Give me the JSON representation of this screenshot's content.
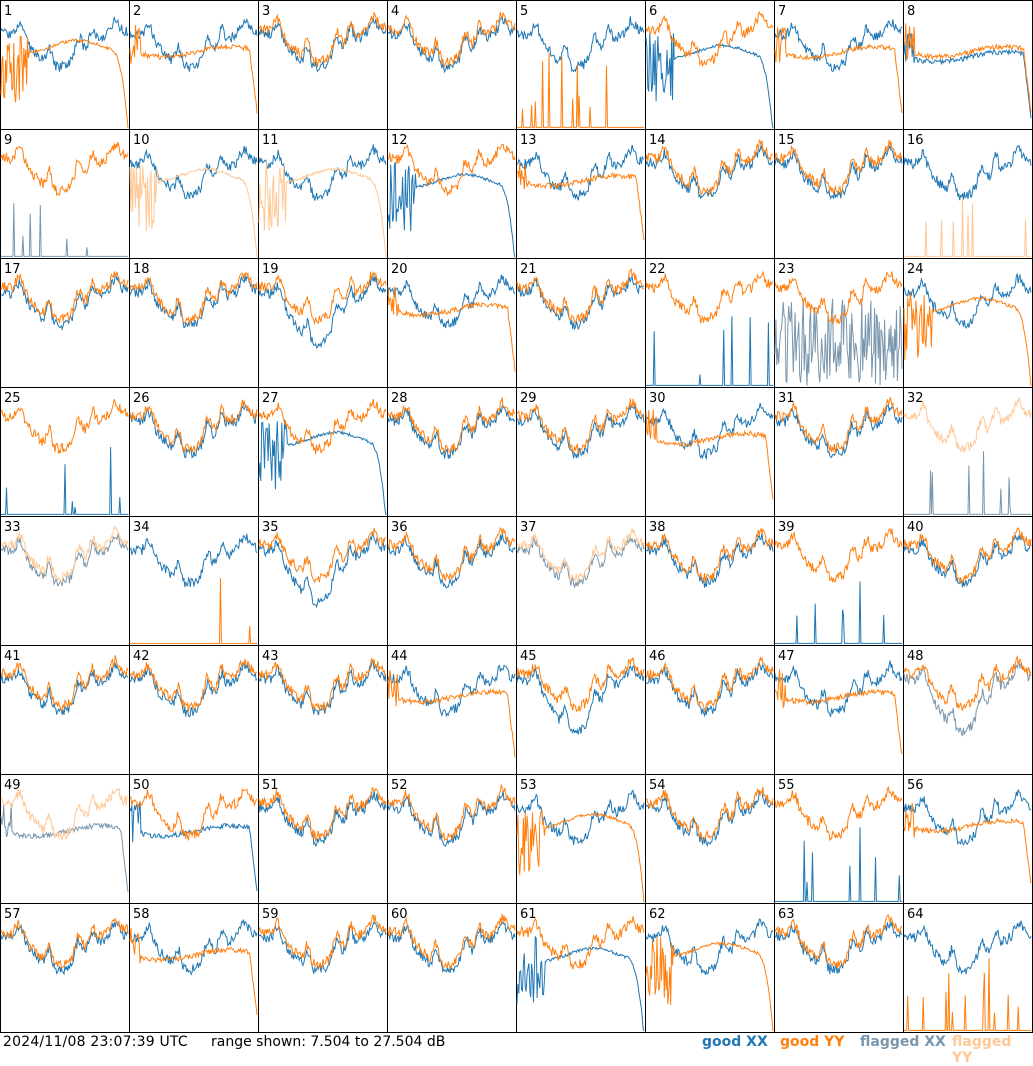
{
  "colors": {
    "good_xx": "#1f77b4",
    "good_yy": "#ff7f0e",
    "flagged_xx": "#7a96ad",
    "flagged_yy": "#ffc896",
    "frame": "#000000"
  },
  "footer": {
    "timestamp": "2024/11/08 23:07:39 UTC",
    "range_text": "range shown: 7.504 to 27.504 dB",
    "legend": {
      "good_label": "good",
      "flagged_label": "flagged",
      "xx_label": "XX",
      "yy_label": "YY"
    }
  },
  "chart_data": {
    "type": "line",
    "layout": "8x8 grid of small multiples",
    "ylim": [
      7.504,
      27.504
    ],
    "yunit": "dB",
    "grid": false,
    "legend_placement": "bottom-right",
    "series_names": [
      "good XX",
      "good YY",
      "flagged XX",
      "flagged YY"
    ],
    "panels": [
      {
        "id": "1",
        "xx": "good",
        "yy": "good",
        "xx_shape": "normal",
        "yy_shape": "droop"
      },
      {
        "id": "2",
        "xx": "good",
        "yy": "good",
        "xx_shape": "normal",
        "yy_shape": "flat"
      },
      {
        "id": "3",
        "xx": "good",
        "yy": "good",
        "xx_shape": "normal",
        "yy_shape": "normal"
      },
      {
        "id": "4",
        "xx": "good",
        "yy": "good",
        "xx_shape": "normal",
        "yy_shape": "normal"
      },
      {
        "id": "5",
        "xx": "good",
        "yy": "good",
        "xx_shape": "normal",
        "yy_shape": "dead"
      },
      {
        "id": "6",
        "xx": "good",
        "yy": "good",
        "xx_shape": "droop",
        "yy_shape": "normal"
      },
      {
        "id": "7",
        "xx": "good",
        "yy": "good",
        "xx_shape": "normal",
        "yy_shape": "flat"
      },
      {
        "id": "8",
        "xx": "good",
        "yy": "good",
        "xx_shape": "flat",
        "yy_shape": "flat"
      },
      {
        "id": "9",
        "xx": "flagged",
        "yy": "good",
        "xx_shape": "dead",
        "yy_shape": "normal"
      },
      {
        "id": "10",
        "xx": "good",
        "yy": "flagged",
        "xx_shape": "normal",
        "yy_shape": "droop"
      },
      {
        "id": "11",
        "xx": "good",
        "yy": "flagged",
        "xx_shape": "normal",
        "yy_shape": "droop"
      },
      {
        "id": "12",
        "xx": "good",
        "yy": "good",
        "xx_shape": "droop",
        "yy_shape": "normal"
      },
      {
        "id": "13",
        "xx": "good",
        "yy": "good",
        "xx_shape": "normal",
        "yy_shape": "flat"
      },
      {
        "id": "14",
        "xx": "good",
        "yy": "good",
        "xx_shape": "normal",
        "yy_shape": "normal"
      },
      {
        "id": "15",
        "xx": "good",
        "yy": "good",
        "xx_shape": "normal",
        "yy_shape": "normal"
      },
      {
        "id": "16",
        "xx": "good",
        "yy": "flagged",
        "xx_shape": "normal",
        "yy_shape": "dead"
      },
      {
        "id": "17",
        "xx": "good",
        "yy": "good",
        "xx_shape": "normal",
        "yy_shape": "normal"
      },
      {
        "id": "18",
        "xx": "good",
        "yy": "good",
        "xx_shape": "normal",
        "yy_shape": "normal"
      },
      {
        "id": "19",
        "xx": "good",
        "yy": "good",
        "xx_shape": "deep",
        "yy_shape": "normal"
      },
      {
        "id": "20",
        "xx": "good",
        "yy": "good",
        "xx_shape": "normal",
        "yy_shape": "flat"
      },
      {
        "id": "21",
        "xx": "good",
        "yy": "good",
        "xx_shape": "normal",
        "yy_shape": "normal"
      },
      {
        "id": "22",
        "xx": "good",
        "yy": "good",
        "xx_shape": "dead",
        "yy_shape": "normal"
      },
      {
        "id": "23",
        "xx": "flagged",
        "yy": "good",
        "xx_shape": "noise",
        "yy_shape": "normal"
      },
      {
        "id": "24",
        "xx": "good",
        "yy": "good",
        "xx_shape": "normal",
        "yy_shape": "droop"
      },
      {
        "id": "25",
        "xx": "good",
        "yy": "good",
        "xx_shape": "dead",
        "yy_shape": "normal"
      },
      {
        "id": "26",
        "xx": "good",
        "yy": "good",
        "xx_shape": "normal",
        "yy_shape": "normal"
      },
      {
        "id": "27",
        "xx": "good",
        "yy": "good",
        "xx_shape": "droop",
        "yy_shape": "normal"
      },
      {
        "id": "28",
        "xx": "good",
        "yy": "good",
        "xx_shape": "normal",
        "yy_shape": "normal"
      },
      {
        "id": "29",
        "xx": "good",
        "yy": "good",
        "xx_shape": "normal",
        "yy_shape": "normal"
      },
      {
        "id": "30",
        "xx": "good",
        "yy": "good",
        "xx_shape": "normal",
        "yy_shape": "flat"
      },
      {
        "id": "31",
        "xx": "good",
        "yy": "good",
        "xx_shape": "normal",
        "yy_shape": "normal"
      },
      {
        "id": "32",
        "xx": "flagged",
        "yy": "flagged",
        "xx_shape": "dead",
        "yy_shape": "normal"
      },
      {
        "id": "33",
        "xx": "flagged",
        "yy": "flagged",
        "xx_shape": "normal",
        "yy_shape": "normal"
      },
      {
        "id": "34",
        "xx": "good",
        "yy": "good",
        "xx_shape": "normal",
        "yy_shape": "dead"
      },
      {
        "id": "35",
        "xx": "good",
        "yy": "good",
        "xx_shape": "deep",
        "yy_shape": "normal"
      },
      {
        "id": "36",
        "xx": "good",
        "yy": "good",
        "xx_shape": "normal",
        "yy_shape": "normal"
      },
      {
        "id": "37",
        "xx": "flagged",
        "yy": "flagged",
        "xx_shape": "normal",
        "yy_shape": "normal"
      },
      {
        "id": "38",
        "xx": "good",
        "yy": "good",
        "xx_shape": "normal",
        "yy_shape": "normal"
      },
      {
        "id": "39",
        "xx": "good",
        "yy": "good",
        "xx_shape": "dead",
        "yy_shape": "normal"
      },
      {
        "id": "40",
        "xx": "good",
        "yy": "good",
        "xx_shape": "normal",
        "yy_shape": "normal"
      },
      {
        "id": "41",
        "xx": "good",
        "yy": "good",
        "xx_shape": "normal",
        "yy_shape": "normal"
      },
      {
        "id": "42",
        "xx": "good",
        "yy": "good",
        "xx_shape": "normal",
        "yy_shape": "normal"
      },
      {
        "id": "43",
        "xx": "good",
        "yy": "good",
        "xx_shape": "normal",
        "yy_shape": "normal"
      },
      {
        "id": "44",
        "xx": "good",
        "yy": "good",
        "xx_shape": "normal",
        "yy_shape": "flat"
      },
      {
        "id": "45",
        "xx": "good",
        "yy": "good",
        "xx_shape": "deep",
        "yy_shape": "normal"
      },
      {
        "id": "46",
        "xx": "good",
        "yy": "good",
        "xx_shape": "normal",
        "yy_shape": "normal"
      },
      {
        "id": "47",
        "xx": "good",
        "yy": "good",
        "xx_shape": "normal",
        "yy_shape": "flat"
      },
      {
        "id": "48",
        "xx": "flagged",
        "yy": "good",
        "xx_shape": "deep",
        "yy_shape": "normal"
      },
      {
        "id": "49",
        "xx": "flagged",
        "yy": "flagged",
        "xx_shape": "flat",
        "yy_shape": "normal"
      },
      {
        "id": "50",
        "xx": "good",
        "yy": "good",
        "xx_shape": "flat",
        "yy_shape": "normal"
      },
      {
        "id": "51",
        "xx": "good",
        "yy": "good",
        "xx_shape": "normal",
        "yy_shape": "normal"
      },
      {
        "id": "52",
        "xx": "good",
        "yy": "good",
        "xx_shape": "normal",
        "yy_shape": "normal"
      },
      {
        "id": "53",
        "xx": "good",
        "yy": "good",
        "xx_shape": "normal",
        "yy_shape": "droop"
      },
      {
        "id": "54",
        "xx": "good",
        "yy": "good",
        "xx_shape": "normal",
        "yy_shape": "normal"
      },
      {
        "id": "55",
        "xx": "good",
        "yy": "good",
        "xx_shape": "dead",
        "yy_shape": "normal"
      },
      {
        "id": "56",
        "xx": "good",
        "yy": "good",
        "xx_shape": "normal",
        "yy_shape": "flat"
      },
      {
        "id": "57",
        "xx": "good",
        "yy": "good",
        "xx_shape": "normal",
        "yy_shape": "normal"
      },
      {
        "id": "58",
        "xx": "good",
        "yy": "good",
        "xx_shape": "normal",
        "yy_shape": "flat"
      },
      {
        "id": "59",
        "xx": "good",
        "yy": "good",
        "xx_shape": "normal",
        "yy_shape": "normal"
      },
      {
        "id": "60",
        "xx": "good",
        "yy": "good",
        "xx_shape": "normal",
        "yy_shape": "normal"
      },
      {
        "id": "61",
        "xx": "good",
        "yy": "good",
        "xx_shape": "droop",
        "yy_shape": "normal"
      },
      {
        "id": "62",
        "xx": "good",
        "yy": "good",
        "xx_shape": "normal",
        "yy_shape": "droop"
      },
      {
        "id": "63",
        "xx": "good",
        "yy": "good",
        "xx_shape": "normal",
        "yy_shape": "normal"
      },
      {
        "id": "64",
        "xx": "good",
        "yy": "good",
        "xx_shape": "normal",
        "yy_shape": "dead"
      }
    ]
  }
}
